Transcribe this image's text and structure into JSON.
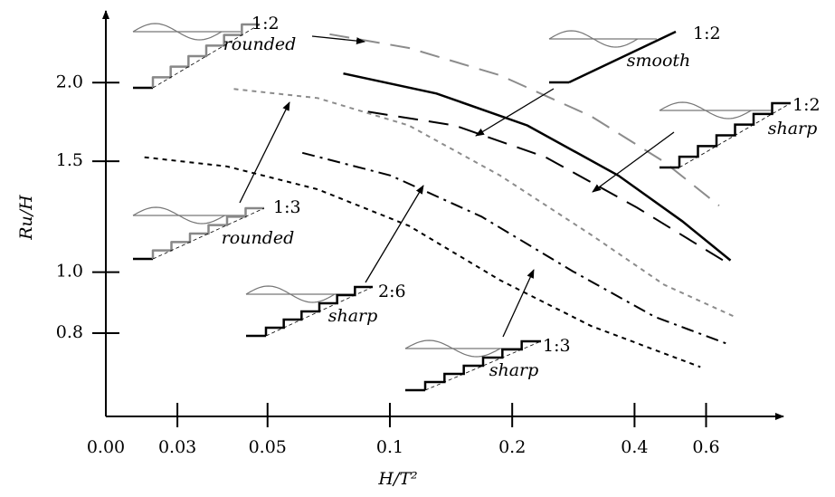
{
  "chart_data": {
    "type": "line",
    "x_label": "H/T²",
    "y_label": "Ru/H",
    "xscale": "log",
    "yscale": "log",
    "xlim": [
      0.02,
      0.93
    ],
    "ylim": [
      0.59,
      2.6
    ],
    "xticks": [
      {
        "value": 0,
        "label": "0.00"
      },
      0.03,
      0.05,
      0.1,
      0.2,
      0.4,
      0.6
    ],
    "yticks": [
      0.8,
      {
        "value": 1.0,
        "label": "1.0"
      },
      1.5,
      {
        "value": 2.0,
        "label": "2.0"
      }
    ],
    "series": [
      {
        "color": "#8c8c8c",
        "style": "dashed",
        "x": [
          0.0711,
          0.1114,
          0.1867,
          0.313,
          0.473,
          0.646
        ],
        "values": [
          2.387,
          2.27,
          2.054,
          1.768,
          1.497,
          1.275
        ]
      },
      {
        "color": "#000000",
        "style": "solid",
        "x": [
          0.0768,
          0.1302,
          0.218,
          0.365,
          0.524,
          0.689
        ],
        "values": [
          2.068,
          1.922,
          1.71,
          1.424,
          1.205,
          1.044
        ]
      },
      {
        "color": "#000000",
        "style": "dashed",
        "x": [
          0.0883,
          0.1444,
          0.2419,
          0.405,
          0.672
        ],
        "values": [
          1.798,
          1.71,
          1.522,
          1.267,
          1.037
        ]
      },
      {
        "color": "#8c8c8c",
        "style": "dotted",
        "x": [
          0.0413,
          0.0664,
          0.1114,
          0.1867,
          0.313,
          0.473,
          0.707
        ],
        "values": [
          1.954,
          1.89,
          1.71,
          1.424,
          1.146,
          0.955,
          0.849
        ]
      },
      {
        "color": "#000000",
        "style": "dashdot",
        "x": [
          0.0609,
          0.1005,
          0.1681,
          0.282,
          0.449,
          0.678
        ],
        "values": [
          1.547,
          1.424,
          1.225,
          1.003,
          0.849,
          0.769
        ]
      },
      {
        "color": "#000000",
        "style": "dotted",
        "x": [
          0.0249,
          0.0397,
          0.0664,
          0.1114,
          0.1867,
          0.313,
          0.581
        ],
        "values": [
          1.522,
          1.472,
          1.354,
          1.185,
          0.971,
          0.821,
          0.707
        ]
      }
    ],
    "annotations": [
      {
        "slope": "1:2",
        "finish": "rounded"
      },
      {
        "slope": "1:2",
        "finish": "smooth"
      },
      {
        "slope": "1:2",
        "finish": "sharp"
      },
      {
        "slope": "1:3",
        "finish": "rounded"
      },
      {
        "slope": "2:6",
        "finish": "sharp"
      },
      {
        "slope": "1:3",
        "finish": "sharp"
      }
    ]
  }
}
